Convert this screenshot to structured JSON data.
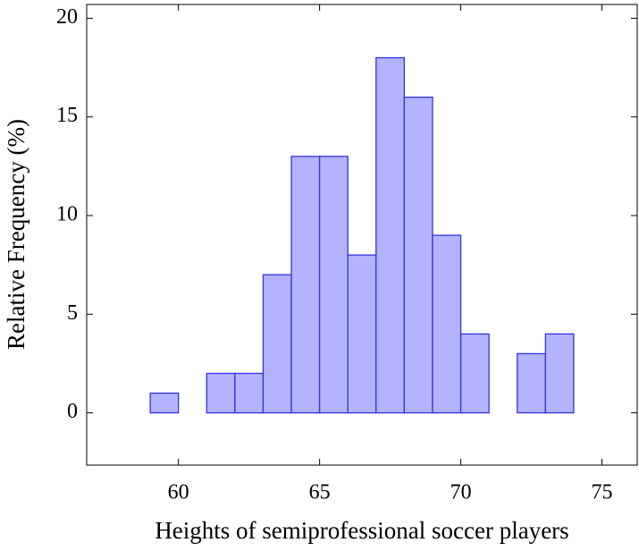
{
  "chart_data": {
    "type": "histogram",
    "x_label": "Heights of semiprofessional soccer players",
    "y_label": "Relative Frequency (%)",
    "bins": [
      59,
      60,
      61,
      62,
      63,
      64,
      65,
      66,
      67,
      68,
      69,
      70,
      71,
      72,
      73,
      74
    ],
    "values": [
      1,
      0,
      2,
      2,
      7,
      13,
      13,
      8,
      18,
      16,
      9,
      4,
      0,
      3,
      4
    ],
    "color": "#b3b3ff",
    "edge_color": "#3333dd",
    "xlim": [
      56.75,
      76.25
    ],
    "ylim": [
      -2.65,
      20.7
    ],
    "xticks": [
      60,
      65,
      70,
      75
    ],
    "yticks": [
      0,
      5,
      10,
      15,
      20
    ]
  }
}
